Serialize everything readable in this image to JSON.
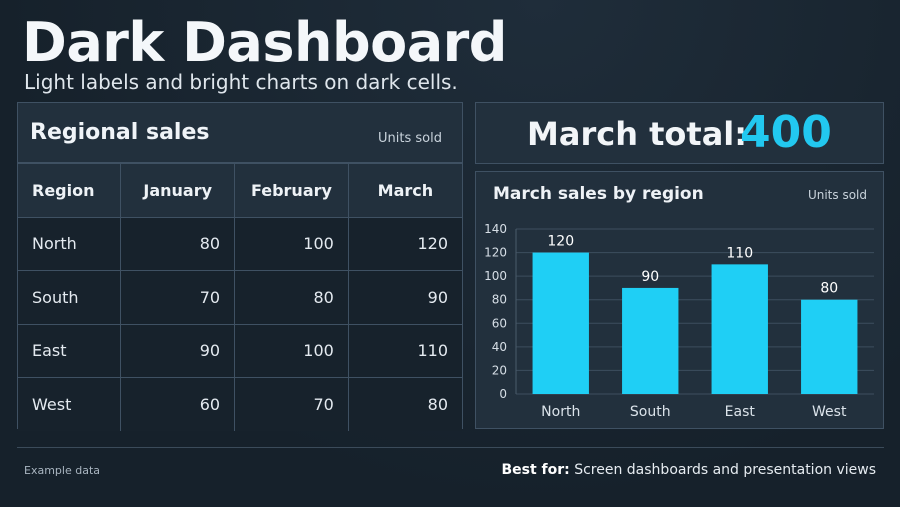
{
  "header": {
    "title": "Dark Dashboard",
    "subtitle": "Light labels and bright charts on dark cells."
  },
  "table": {
    "title": "Regional sales",
    "units": "Units sold",
    "columns": [
      "Region",
      "January",
      "February",
      "March"
    ],
    "rows": [
      {
        "region": "North",
        "values": [
          80,
          100,
          120
        ]
      },
      {
        "region": "South",
        "values": [
          70,
          80,
          90
        ]
      },
      {
        "region": "East",
        "values": [
          90,
          100,
          110
        ]
      },
      {
        "region": "West",
        "values": [
          60,
          70,
          80
        ]
      }
    ]
  },
  "total": {
    "label": "March total:",
    "value": "400"
  },
  "chart_data": {
    "type": "bar",
    "title": "March sales by region",
    "units": "Units sold",
    "categories": [
      "North",
      "South",
      "East",
      "West"
    ],
    "values": [
      120,
      90,
      110,
      80
    ],
    "ylim": [
      0,
      140
    ],
    "yticks": [
      0,
      20,
      40,
      60,
      80,
      100,
      120,
      140
    ],
    "grid": true,
    "data_labels": true,
    "bar_color": "#1fcff5"
  },
  "footer": {
    "note": "Example data",
    "best_for_label": "Best for:",
    "best_for_text": " Screen dashboards and presentation views"
  },
  "colors": {
    "accent": "#22c8f0",
    "background": "#18232e",
    "panel": "#22303d",
    "border": "#3f5163"
  }
}
